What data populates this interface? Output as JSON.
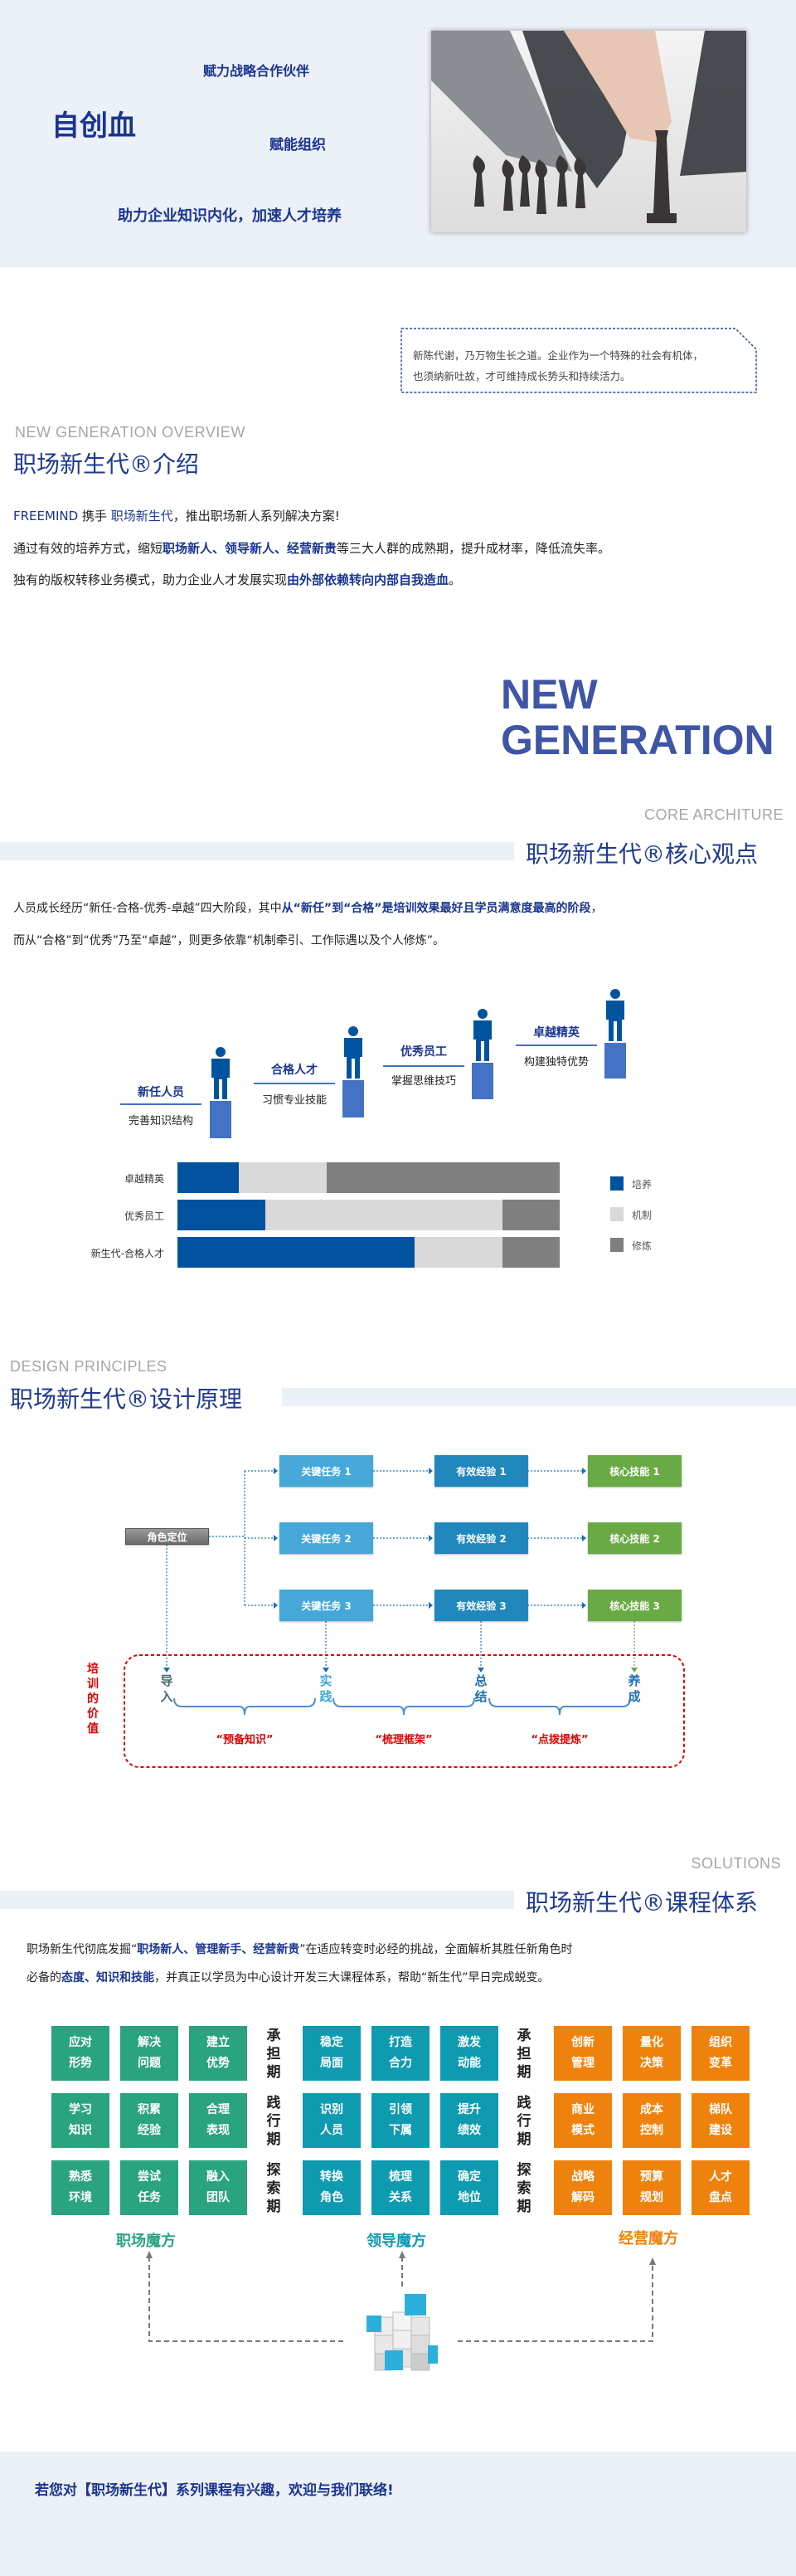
{
  "hero": {
    "brand": "自创血",
    "slogan_1": "赋力战略合作伙伴",
    "slogan_2": "赋能组织",
    "slogan_3": "助力企业知识内化，加速人才培养",
    "bg_color": "#ecf0f7"
  },
  "quote": {
    "line_1": "新陈代谢，乃万物生长之道。企业作为一个特殊的社会有机体，",
    "line_2": "也须纳新吐故，才可维持成长势头和持续活力。"
  },
  "overview": {
    "en_title": "NEW GENERATION OVERVIEW",
    "title": "职场新生代®介绍",
    "p1": {
      "brand": "FREEMIND",
      "a": " 携手 ",
      "b": "职场新生代",
      "c": "，推出职场新人系列解决方案!"
    },
    "p2": {
      "a": "通过有效的培养方式，缩短",
      "b": "职场新人、领导新人、经营新贵",
      "c": "等三大人群的成熟期，提升成材率，降低流失率。"
    },
    "p3": {
      "a": "独有的版权转移业务模式，助力企业人才发展实现",
      "b": "由外部依赖转向内部自我造血",
      "c": "。"
    }
  },
  "big_text": {
    "line_1": "NEW",
    "line_2": "GENERATION"
  },
  "core": {
    "en_title": "CORE ARCHITURE",
    "title": "职场新生代®核心观点",
    "p1": {
      "a": "人员成长经历“新任-合格-优秀-卓越”四大阶段，其中",
      "b": "从“新任”到“合格”是培训效果最好且学员满意度最高的阶段",
      "c": "，"
    },
    "p2": "而从“合格”到“优秀”乃至“卓越”，则更多依靠“机制牵引、工作际遇以及个人修炼”。",
    "stages": [
      {
        "title": "新任人员",
        "sub": "完善知识结构"
      },
      {
        "title": "合格人才",
        "sub": "习惯专业技能"
      },
      {
        "title": "优秀员工",
        "sub": "掌握思维技巧"
      },
      {
        "title": "卓越精英",
        "sub": "构建独特优势"
      }
    ]
  },
  "chart_data": {
    "type": "bar",
    "orientation": "horizontal",
    "stacked": true,
    "normalized": true,
    "categories": [
      "卓越精英",
      "优秀员工",
      "新生代-合格人才"
    ],
    "series": [
      {
        "name": "培养",
        "values": [
          16,
          23,
          62
        ],
        "color": "#00529f"
      },
      {
        "name": "机制",
        "values": [
          23,
          62,
          23
        ],
        "color": "#d9d9d9"
      },
      {
        "name": "修炼",
        "values": [
          61,
          15,
          15
        ],
        "color": "#7f7f7f"
      }
    ],
    "xlim": [
      0,
      100
    ],
    "grid": false,
    "legend_position": "right"
  },
  "design": {
    "en_title": "DESIGN PRINCIPLES",
    "title": "职场新生代®设计原理",
    "root": "角色定位",
    "columns": [
      {
        "items": [
          "关键任务 1",
          "关键任务 2",
          "关键任务 3"
        ],
        "color": "#45a8d9"
      },
      {
        "items": [
          "有效经验 1",
          "有效经验 2",
          "有效经验 3"
        ],
        "color": "#1f87bb"
      },
      {
        "items": [
          "核心技能 1",
          "核心技能 2",
          "核心技能 3"
        ],
        "color": "#6aaa44"
      }
    ],
    "value_label": "培训的价值",
    "steps": [
      {
        "label": "导入",
        "color": "#4a6b6b"
      },
      {
        "label": "实践",
        "color": "#45a8d9"
      },
      {
        "label": "总结",
        "color": "#1f6fae"
      },
      {
        "label": "养成",
        "color": "#1f6fae"
      }
    ],
    "braces": [
      "“预备知识”",
      "“梳理框架”",
      "“点拨提炼”"
    ]
  },
  "solutions": {
    "en_title": "SOLUTIONS",
    "title": "职场新生代®课程体系",
    "p1": {
      "a": "职场新生代彻底发掘“",
      "b": "职场新人、管理新手、经营新贵",
      "c": "”在适应转变时必经的挑战，全面解析其胜任新角色时"
    },
    "p2": {
      "a": "必备的",
      "b": "态度、知识和技能",
      "c": "，并真正以学员为中心设计开发三大课程体系，帮助“新生代”早日完成蜕变。"
    },
    "phases": [
      "承担期",
      "践行期",
      "探索期"
    ],
    "groups": [
      {
        "name": "职场魔方",
        "color": "#2aa37f",
        "tiles": [
          [
            "应对\n形势",
            "解决\n问题",
            "建立\n优势"
          ],
          [
            "学习\n知识",
            "积累\n经验",
            "合理\n表现"
          ],
          [
            "熟悉\n环境",
            "尝试\n任务",
            "融入\n团队"
          ]
        ]
      },
      {
        "name": "领导魔方",
        "color": "#0e9bb0",
        "tiles": [
          [
            "稳定\n局面",
            "打造\n合力",
            "激发\n动能"
          ],
          [
            "识别\n人员",
            "引领\n下属",
            "提升\n绩效"
          ],
          [
            "转换\n角色",
            "梳理\n关系",
            "确定\n地位"
          ]
        ]
      },
      {
        "name": "经营魔方",
        "color": "#ef820c",
        "tiles": [
          [
            "创新\n管理",
            "量化\n决策",
            "组织\n变革"
          ],
          [
            "商业\n模式",
            "成本\n控制",
            "梯队\n建设"
          ],
          [
            "战略\n解码",
            "预算\n规划",
            "人才\n盘点"
          ]
        ]
      }
    ]
  },
  "footer": {
    "cta": "若您对【职场新生代】系列课程有兴趣，欢迎与我们联络!"
  },
  "colors": {
    "navy": "#1a3590",
    "title_blue": "#1f3a93",
    "band": "#ecf0f7",
    "red": "#e00000"
  }
}
